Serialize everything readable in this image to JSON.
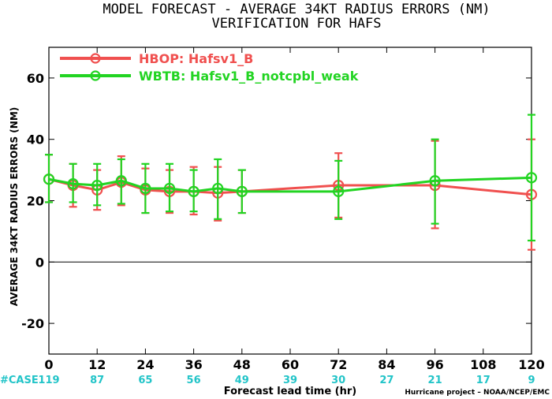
{
  "chart_data": {
    "type": "line",
    "title": "MODEL FORECAST - AVERAGE 34KT RADIUS ERRORS (NM)",
    "subtitle": "VERIFICATION FOR HAFS",
    "xlabel": "Forecast lead time (hr)",
    "ylabel": "AVERAGE 34KT RADIUS ERRORS (NM)",
    "xlim": [
      0,
      120
    ],
    "ylim": [
      -30,
      70
    ],
    "x_ticks": [
      0,
      12,
      24,
      36,
      48,
      60,
      72,
      84,
      96,
      108,
      120
    ],
    "y_ticks": [
      -20,
      0,
      20,
      40,
      60
    ],
    "zero_line": true,
    "legend_position": "top-left",
    "series": [
      {
        "name": "HBOP: Hafsv1_B",
        "color": "#f0504f",
        "x": [
          0,
          6,
          12,
          18,
          24,
          30,
          36,
          42,
          48,
          72,
          96,
          120
        ],
        "y": [
          27,
          25,
          23.5,
          26,
          23.5,
          23,
          23,
          22.5,
          23,
          25,
          25,
          22
        ],
        "err_low": [
          19.5,
          18,
          17,
          18.5,
          16,
          16,
          15.5,
          13.5,
          16,
          14.5,
          11,
          4
        ],
        "err_high": [
          35,
          32,
          30,
          34.5,
          30.5,
          30,
          31,
          31,
          30,
          35.5,
          39.5,
          40
        ]
      },
      {
        "name": "WBTB: Hafsv1_B_notcpbl_weak",
        "color": "#22d422",
        "x": [
          0,
          6,
          12,
          18,
          24,
          30,
          36,
          42,
          48,
          72,
          96,
          120
        ],
        "y": [
          27,
          25.5,
          25,
          26.5,
          24,
          24,
          23,
          24,
          23,
          23,
          26.5,
          27.5
        ],
        "err_low": [
          19.5,
          19.5,
          18.5,
          19,
          16,
          16.5,
          16.5,
          14,
          16,
          14,
          12.5,
          7
        ],
        "err_high": [
          35,
          32,
          32,
          33.5,
          32,
          32,
          30,
          33.5,
          30,
          33,
          40,
          48
        ]
      }
    ],
    "case_label": "#CASE",
    "case_counts": [
      {
        "x": 0,
        "n": "119"
      },
      {
        "x": 12,
        "n": "87"
      },
      {
        "x": 24,
        "n": "65"
      },
      {
        "x": 36,
        "n": "56"
      },
      {
        "x": 48,
        "n": "49"
      },
      {
        "x": 60,
        "n": "39"
      },
      {
        "x": 72,
        "n": "30"
      },
      {
        "x": 84,
        "n": "27"
      },
      {
        "x": 96,
        "n": "21"
      },
      {
        "x": 108,
        "n": "17"
      },
      {
        "x": 120,
        "n": "9"
      }
    ]
  },
  "footer": "Hurricane project – NOAA/NCEP/EMC"
}
